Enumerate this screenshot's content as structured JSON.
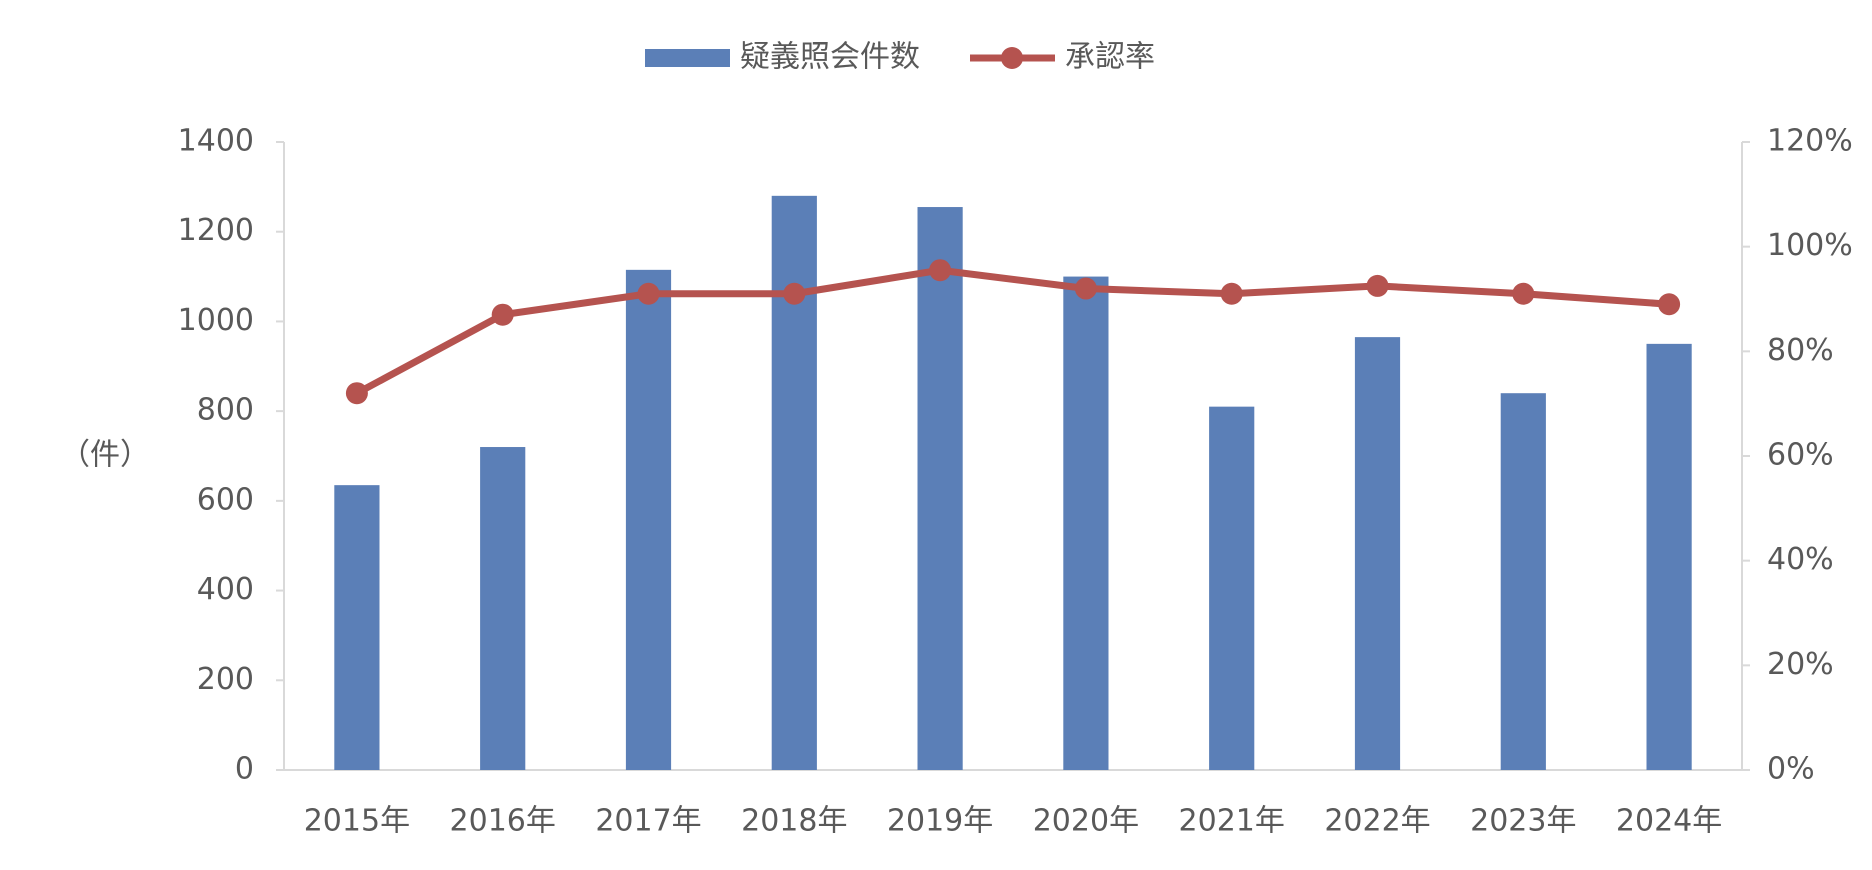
{
  "chart_data": {
    "type": "bar-line",
    "categories": [
      "2015年",
      "2016年",
      "2017年",
      "2018年",
      "2019年",
      "2020年",
      "2021年",
      "2022年",
      "2023年",
      "2024年"
    ],
    "ylabel": "（件）",
    "series": [
      {
        "name": "疑義照会件数",
        "type": "bar",
        "color": "#5b7fb7",
        "values": [
          635,
          720,
          1115,
          1280,
          1255,
          1100,
          810,
          965,
          840,
          950
        ]
      },
      {
        "name": "承認率",
        "type": "line",
        "axis": "y2",
        "color": "#b5534f",
        "values": [
          72,
          87,
          91,
          91,
          95.5,
          92,
          91,
          92.5,
          91,
          89
        ]
      }
    ],
    "ylim": [
      0,
      1400
    ],
    "yticks": [
      0,
      200,
      400,
      600,
      800,
      1000,
      1200,
      1400
    ],
    "y2lim": [
      0,
      120
    ],
    "y2ticks": [
      {
        "value": 0,
        "label": "0%"
      },
      {
        "value": 20,
        "label": "20%"
      },
      {
        "value": 40,
        "label": "40%"
      },
      {
        "value": 60,
        "label": "60%"
      },
      {
        "value": 80,
        "label": "80%"
      },
      {
        "value": 100,
        "label": "100%"
      },
      {
        "value": 120,
        "label": "120%"
      }
    ],
    "grid": false,
    "legend": "top"
  }
}
